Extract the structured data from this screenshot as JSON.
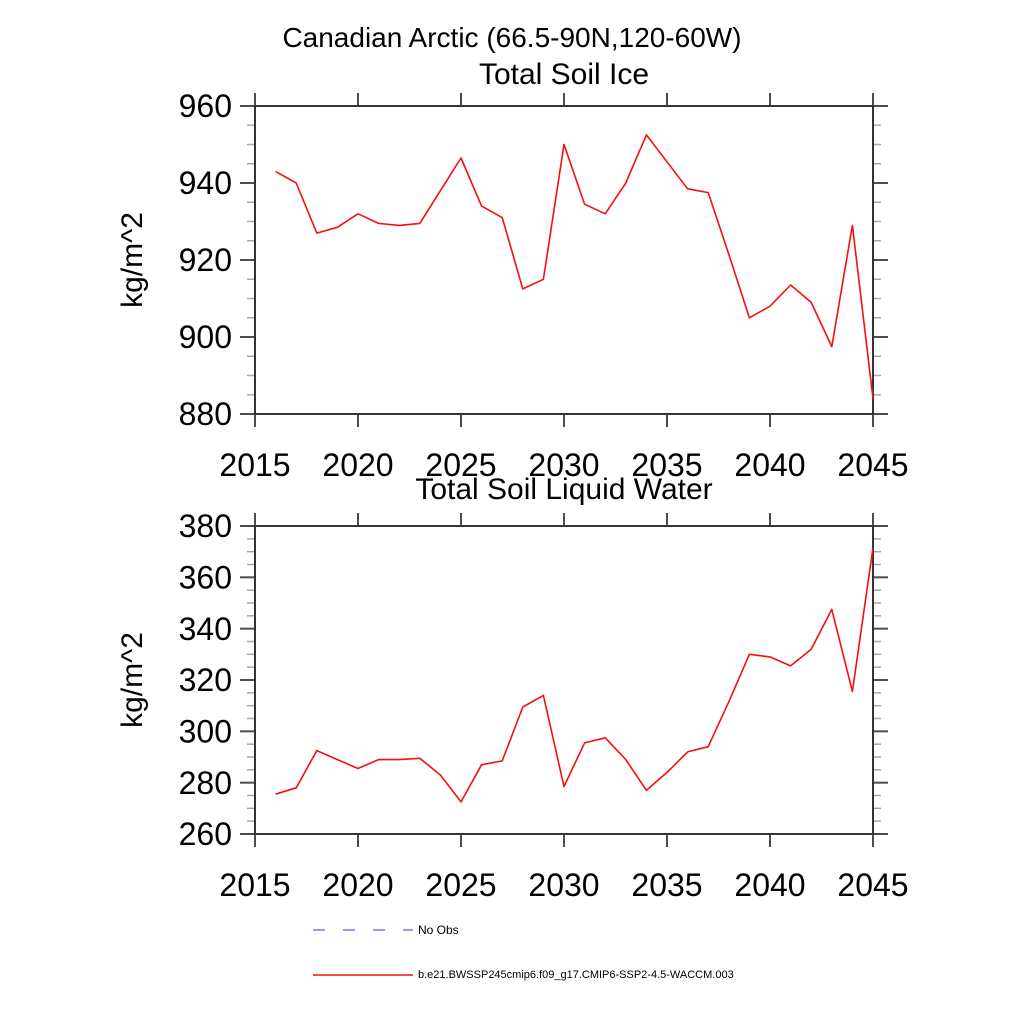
{
  "title": "Canadian Arctic (66.5-90N,120-60W)",
  "chart_data": [
    {
      "type": "line",
      "title": "Total Soil Ice",
      "ylabel": "kg/m^2",
      "xlim": [
        2015,
        2045
      ],
      "ylim": [
        880,
        960
      ],
      "x_major_ticks": [
        2015,
        2020,
        2025,
        2030,
        2035,
        2040,
        2045
      ],
      "y_major_ticks": [
        880,
        900,
        920,
        940,
        960
      ],
      "y_minor_step": 5,
      "grid": false,
      "legend_position": "below-figure",
      "x": [
        2016,
        2017,
        2018,
        2019,
        2020,
        2021,
        2022,
        2023,
        2024,
        2025,
        2026,
        2027,
        2028,
        2029,
        2030,
        2031,
        2032,
        2033,
        2034,
        2035,
        2036,
        2037,
        2038,
        2039,
        2040,
        2041,
        2042,
        2043,
        2044,
        2045
      ],
      "series": [
        {
          "name": "b.e21.BWSSP245cmip6.f09_g17.CMIP6-SSP2-4.5-WACCM.003",
          "color": "#f50f0f",
          "values": [
            943,
            940,
            927,
            928.5,
            932,
            929.5,
            929,
            929.5,
            938,
            946.5,
            934,
            931,
            912.5,
            915,
            950,
            934.5,
            932,
            940,
            952.5,
            945.5,
            938.5,
            937.5,
            921.5,
            905,
            908,
            913.5,
            909,
            897.5,
            929,
            884
          ]
        }
      ]
    },
    {
      "type": "line",
      "title": "Total Soil Liquid Water",
      "ylabel": "kg/m^2",
      "xlim": [
        2015,
        2045
      ],
      "ylim": [
        260,
        380
      ],
      "x_major_ticks": [
        2015,
        2020,
        2025,
        2030,
        2035,
        2040,
        2045
      ],
      "y_major_ticks": [
        260,
        280,
        300,
        320,
        340,
        360,
        380
      ],
      "y_minor_step": 5,
      "grid": false,
      "x": [
        2016,
        2017,
        2018,
        2019,
        2020,
        2021,
        2022,
        2023,
        2024,
        2025,
        2026,
        2027,
        2028,
        2029,
        2030,
        2031,
        2032,
        2033,
        2034,
        2035,
        2036,
        2037,
        2038,
        2039,
        2040,
        2041,
        2042,
        2043,
        2044,
        2045
      ],
      "series": [
        {
          "name": "b.e21.BWSSP245cmip6.f09_g17.CMIP6-SSP2-4.5-WACCM.003",
          "color": "#f50f0f",
          "values": [
            275.5,
            278,
            292.5,
            289,
            285.5,
            289,
            289,
            289.5,
            283,
            272.5,
            287,
            288.5,
            309.5,
            314,
            278.5,
            295.5,
            297.5,
            289,
            277,
            284,
            292,
            294,
            311.5,
            330,
            329,
            325.5,
            332,
            347.5,
            315.5,
            371.5
          ]
        }
      ]
    }
  ],
  "legend": {
    "items": [
      {
        "label": "No Obs",
        "style": "dashed",
        "color": "#7878d8"
      },
      {
        "label": "b.e21.BWSSP245cmip6.f09_g17.CMIP6-SSP2-4.5-WACCM.003",
        "style": "solid",
        "color": "#f50f0f"
      }
    ]
  },
  "colors": {
    "background": "#ffffff",
    "frame": "#333333",
    "major_tick": "#4d4d4d",
    "minor_tick": "#a8a8a8",
    "text": "#000000",
    "line": "#f50f0f",
    "no_obs": "#7878d8"
  }
}
